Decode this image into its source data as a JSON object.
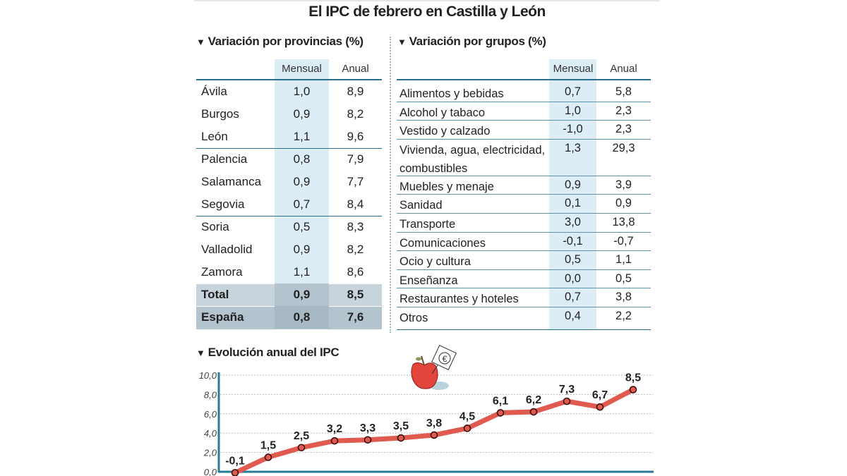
{
  "title": "El IPC de febrero en Castilla y León",
  "provincias": {
    "heading": "Variación por provincias (%)",
    "col_mensual": "Mensual",
    "col_anual": "Anual",
    "rows": [
      [
        "Ávila",
        "1,0",
        "8,9"
      ],
      [
        "Burgos",
        "0,9",
        "8,2"
      ],
      [
        "León",
        "1,1",
        "9,6"
      ],
      [
        "Palencia",
        "0,8",
        "7,9"
      ],
      [
        "Salamanca",
        "0,9",
        "7,7"
      ],
      [
        "Segovia",
        "0,7",
        "8,4"
      ],
      [
        "Soria",
        "0,5",
        "8,3"
      ],
      [
        "Valladolid",
        "0,9",
        "8,2"
      ],
      [
        "Zamora",
        "1,1",
        "8,6"
      ]
    ],
    "total": [
      "Total",
      "0,9",
      "8,5"
    ],
    "espana": [
      "España",
      "0,8",
      "7,6"
    ]
  },
  "grupos": {
    "heading": "Variación por grupos (%)",
    "col_mensual": "Mensual",
    "col_anual": "Anual",
    "rows": [
      [
        "Alimentos y bebidas",
        "0,7",
        "5,8"
      ],
      [
        "Alcohol y tabaco",
        "1,0",
        "2,3"
      ],
      [
        "Vestido y calzado",
        "-1,0",
        "2,3"
      ],
      [
        "Vivienda, agua, electricidad, combustibles",
        "1,3",
        "29,3"
      ],
      [
        "Muebles y menaje",
        "0,9",
        "3,9"
      ],
      [
        "Sanidad",
        "0,1",
        "0,9"
      ],
      [
        "Transporte",
        "3,0",
        "13,8"
      ],
      [
        "Comunicaciones",
        "-0,1",
        "-0,7"
      ],
      [
        "Ocio y cultura",
        "0,5",
        "1,1"
      ],
      [
        "Enseñanza",
        "0,0",
        "0,5"
      ],
      [
        "Restaurantes y hoteles",
        "0,7",
        "3,8"
      ],
      [
        "Otros",
        "0,4",
        "2,2"
      ]
    ]
  },
  "chart_data": {
    "type": "line",
    "title": "Evolución anual del IPC",
    "xlabel": "",
    "ylabel": "",
    "ylim": [
      0,
      10
    ],
    "yticks": [
      "0,0",
      "2,0",
      "4,0",
      "6,0",
      "8,0",
      "10,0"
    ],
    "grid": "horizontal dotted",
    "values": [
      -0.1,
      1.5,
      2.5,
      3.2,
      3.3,
      3.5,
      3.8,
      4.5,
      6.1,
      6.2,
      7.3,
      6.7,
      8.5
    ],
    "labels": [
      "-0,1",
      "1,5",
      "2,5",
      "3,2",
      "3,3",
      "3,5",
      "3,8",
      "4,5",
      "6,1",
      "6,2",
      "7,3",
      "6,7",
      "8,5"
    ],
    "line_color": "#e05a4f",
    "axis_color": "#2b7a96",
    "icon": "apple-with-euro-tag-icon"
  }
}
